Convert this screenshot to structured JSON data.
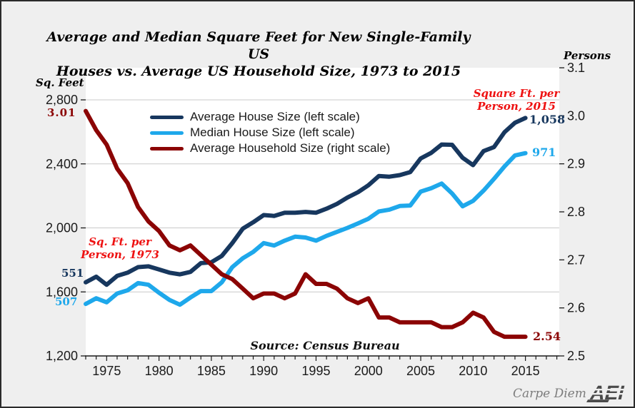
{
  "title": {
    "line1": "Average and Median Square Feet for New Single-Family US",
    "line2": "Houses vs. Average US Household Size, 1973 to 2015"
  },
  "axes": {
    "left": {
      "unit_label": "Sq. Feet",
      "ticks": [
        {
          "label": "2,800",
          "value": 2800
        },
        {
          "label": "2,400",
          "value": 2400
        },
        {
          "label": "2,000",
          "value": 2000
        },
        {
          "label": "1,600",
          "value": 1600
        },
        {
          "label": "1,200",
          "value": 1200
        }
      ]
    },
    "right": {
      "unit_label": "Persons",
      "ticks": [
        {
          "label": "3.1",
          "value": 3.1
        },
        {
          "label": "3.0",
          "value": 3.0
        },
        {
          "label": "2.9",
          "value": 2.9
        },
        {
          "label": "2.8",
          "value": 2.8
        },
        {
          "label": "2.7",
          "value": 2.7
        },
        {
          "label": "2.6",
          "value": 2.6
        },
        {
          "label": "2.5",
          "value": 2.5
        }
      ]
    },
    "x": {
      "labeled_years": [
        "1975",
        "1980",
        "1985",
        "1990",
        "1995",
        "2000",
        "2005",
        "2010",
        "2015"
      ],
      "minor_tick_start": 1973,
      "minor_tick_end": 2018
    }
  },
  "legend": [
    {
      "label": "Average House Size (left scale)",
      "color": "#17375E"
    },
    {
      "label": "Median House Size (left scale)",
      "color": "#1EA8EB"
    },
    {
      "label": "Average Household Size (right scale)",
      "color": "#8B0404"
    }
  ],
  "annotations": {
    "household_1973": "3.01",
    "avg_sqft_per_person_1973": "551",
    "med_sqft_per_person_1973": "507",
    "note_1973_line1": "Sq. Ft. per",
    "note_1973_line2": "Person, 1973",
    "note_2015_line1": "Square Ft. per",
    "note_2015_line2": "Person, 2015",
    "avg_sqft_per_person_2015": "1,058",
    "med_sqft_per_person_2015": "971",
    "household_2015": "2.54"
  },
  "source": "Source: Census Bureau",
  "footer": {
    "carpe_diem": "Carpe Diem",
    "logo": "AEI"
  },
  "colors": {
    "navy": "#17375E",
    "light_blue": "#1EA8EB",
    "dark_red": "#8B0404",
    "annotation_red": "#EE1111",
    "grid": "#C9C9C9",
    "axis": "#1A1A1A",
    "background": "#EFEFEF",
    "plot_background": "#FFFFFF",
    "logo_gray": "#4A4A4A",
    "carpe_gray": "#7D7D7D"
  },
  "chart_data": {
    "type": "line",
    "title": "Average and Median Square Feet for New Single-Family US Houses vs. Average US Household Size, 1973 to 2015",
    "x": [
      1973,
      1974,
      1975,
      1976,
      1977,
      1978,
      1979,
      1980,
      1981,
      1982,
      1983,
      1984,
      1985,
      1986,
      1987,
      1988,
      1989,
      1990,
      1991,
      1992,
      1993,
      1994,
      1995,
      1996,
      1997,
      1998,
      1999,
      2000,
      2001,
      2002,
      2003,
      2004,
      2005,
      2006,
      2007,
      2008,
      2009,
      2010,
      2011,
      2012,
      2013,
      2014,
      2015
    ],
    "left_ylim": [
      1200,
      2800
    ],
    "right_ylim": [
      2.5,
      3.1
    ],
    "grid_values_left": [
      2800,
      2400,
      2000,
      1600
    ],
    "legend_position": "top-left-inside",
    "series": [
      {
        "name": "Average House Size (left scale)",
        "axis": "left",
        "color": "#17375E",
        "values": [
          1660,
          1695,
          1645,
          1700,
          1720,
          1755,
          1760,
          1740,
          1720,
          1710,
          1725,
          1780,
          1785,
          1825,
          1905,
          1995,
          2035,
          2080,
          2075,
          2095,
          2095,
          2100,
          2095,
          2120,
          2150,
          2190,
          2223,
          2266,
          2324,
          2320,
          2330,
          2349,
          2434,
          2469,
          2521,
          2519,
          2438,
          2392,
          2480,
          2505,
          2598,
          2657,
          2687
        ]
      },
      {
        "name": "Median House Size (left scale)",
        "axis": "left",
        "color": "#1EA8EB",
        "values": [
          1525,
          1560,
          1535,
          1590,
          1610,
          1655,
          1645,
          1595,
          1550,
          1520,
          1565,
          1605,
          1605,
          1660,
          1755,
          1810,
          1850,
          1905,
          1890,
          1920,
          1945,
          1940,
          1920,
          1950,
          1975,
          2000,
          2028,
          2057,
          2103,
          2114,
          2137,
          2140,
          2227,
          2248,
          2277,
          2215,
          2135,
          2169,
          2233,
          2306,
          2384,
          2453,
          2467
        ]
      },
      {
        "name": "Average Household Size (right scale)",
        "axis": "right",
        "color": "#8B0404",
        "values": [
          3.01,
          2.97,
          2.94,
          2.89,
          2.86,
          2.81,
          2.78,
          2.76,
          2.73,
          2.72,
          2.73,
          2.71,
          2.69,
          2.67,
          2.66,
          2.64,
          2.62,
          2.63,
          2.63,
          2.62,
          2.63,
          2.67,
          2.65,
          2.65,
          2.64,
          2.62,
          2.61,
          2.62,
          2.58,
          2.58,
          2.57,
          2.57,
          2.57,
          2.57,
          2.56,
          2.56,
          2.57,
          2.59,
          2.58,
          2.55,
          2.54,
          2.54,
          2.54
        ]
      }
    ]
  }
}
